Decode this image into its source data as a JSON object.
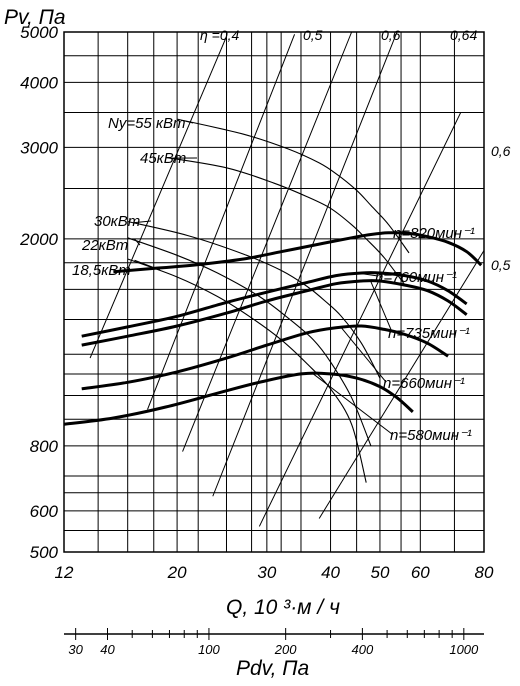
{
  "chart_data": {
    "type": "line",
    "title": "",
    "xscale": "log",
    "yscale": "log",
    "xlabel": "Q, 10 ³·м / ч",
    "ylabel": "Pv,  Па",
    "xlim": [
      12,
      80
    ],
    "ylim": [
      500,
      5000
    ],
    "x_ticks": [
      12,
      20,
      30,
      40,
      50,
      60,
      80
    ],
    "x_tick_labels": [
      "12",
      "20",
      "30",
      "40",
      "50",
      "60",
      "80"
    ],
    "y_ticks": [
      500,
      600,
      800,
      2000,
      3000,
      4000,
      5000
    ],
    "y_tick_labels": [
      "500",
      "600",
      "800",
      "2000",
      "3000",
      "4000",
      "5000"
    ],
    "pdv_axis": {
      "label": "Pdv,  Па",
      "ticks": [
        30,
        40,
        100,
        200,
        400,
        1000
      ],
      "tick_labels": [
        "30",
        "40",
        "100",
        "200",
        "400",
        "1000"
      ]
    },
    "grid": true,
    "series": [
      {
        "name": "n=820мин⁻¹",
        "x": [
          15,
          18,
          22,
          27,
          32,
          38,
          44,
          48,
          52,
          57,
          62,
          68,
          74,
          79
        ],
        "y": [
          1730,
          1755,
          1785,
          1830,
          1890,
          1955,
          2010,
          2040,
          2055,
          2050,
          2020,
          1970,
          1890,
          1780
        ]
      },
      {
        "name": "n=760мин⁻¹",
        "x": [
          13,
          16,
          20,
          25,
          30,
          36,
          41,
          46,
          50,
          56,
          62,
          68,
          74
        ],
        "y": [
          1300,
          1355,
          1420,
          1510,
          1580,
          1650,
          1700,
          1720,
          1720,
          1700,
          1660,
          1590,
          1500
        ]
      },
      {
        "name": "n=735мин⁻¹",
        "x": [
          13,
          16,
          20,
          25,
          30,
          36,
          41,
          46,
          50,
          56,
          62,
          68,
          74
        ],
        "y": [
          1250,
          1300,
          1360,
          1440,
          1520,
          1590,
          1640,
          1660,
          1660,
          1630,
          1590,
          1520,
          1430
        ]
      },
      {
        "name": "n=660мин⁻¹",
        "x": [
          13,
          16,
          20,
          25,
          30,
          36,
          41,
          46,
          51,
          56,
          62,
          68
        ],
        "y": [
          1030,
          1060,
          1110,
          1180,
          1250,
          1320,
          1350,
          1360,
          1340,
          1310,
          1260,
          1190
        ]
      },
      {
        "name": "n=580мин⁻¹",
        "x": [
          12,
          15,
          19,
          24,
          29,
          35,
          40,
          45,
          50,
          54,
          58
        ],
        "y": [
          880,
          905,
          950,
          1010,
          1060,
          1100,
          1100,
          1080,
          1040,
          990,
          930
        ]
      }
    ],
    "power_curves": [
      {
        "name": "Ny=55 кВт",
        "x": [
          20,
          27,
          33,
          38,
          41,
          45,
          48,
          52,
          57
        ],
        "y": [
          3400,
          3180,
          2980,
          2800,
          2670,
          2480,
          2320,
          2130,
          1880
        ]
      },
      {
        "name": "45кВт",
        "x": [
          19,
          25,
          31,
          36,
          40,
          44,
          47,
          51,
          56
        ],
        "y": [
          2870,
          2740,
          2560,
          2410,
          2290,
          2130,
          2000,
          1840,
          1630
        ]
      },
      {
        "name": "30кВт",
        "x": [
          16,
          21,
          27,
          32,
          36,
          39,
          42,
          46,
          50
        ],
        "y": [
          2160,
          2030,
          1870,
          1740,
          1620,
          1520,
          1420,
          1260,
          1080
        ]
      },
      {
        "name": "22кВт",
        "x": [
          16,
          20,
          24,
          29,
          33,
          37,
          40,
          44,
          48
        ],
        "y": [
          2010,
          1860,
          1720,
          1550,
          1410,
          1280,
          1160,
          990,
          800
        ]
      },
      {
        "name": "18,5кВт",
        "x": [
          16,
          20,
          24,
          28,
          32,
          36,
          40,
          44,
          47
        ],
        "y": [
          1830,
          1690,
          1550,
          1410,
          1280,
          1150,
          1030,
          880,
          680
        ]
      }
    ],
    "efficiency_labels": [
      {
        "text": "η =0,4"
      },
      {
        "text": "0,5"
      },
      {
        "text": "0,6"
      },
      {
        "text": "0,64"
      },
      {
        "text": "0,6"
      },
      {
        "text": "0,5"
      }
    ],
    "series_exponent": "-1",
    "colors": {
      "line": "#000000",
      "background": "#ffffff"
    }
  }
}
